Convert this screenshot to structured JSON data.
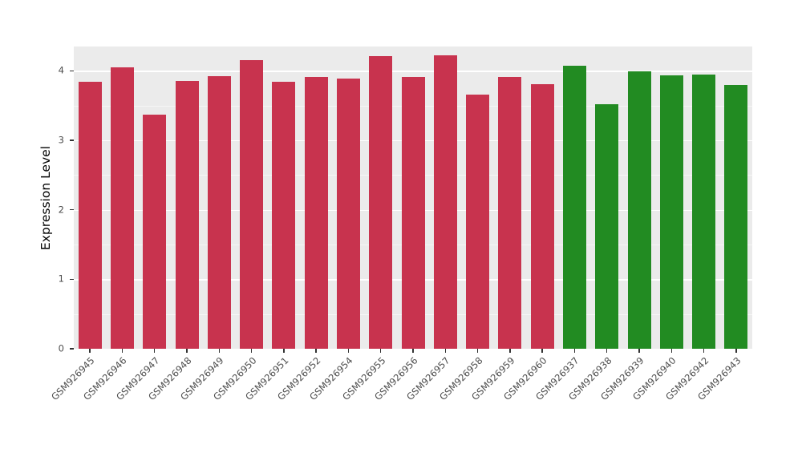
{
  "figure": {
    "background": "#FFFFFF",
    "panel_background": "#EBEBEB",
    "grid_color": "#FFFFFF",
    "tick_label_color": "#4D4D4D",
    "tick_mark_color": "#333333"
  },
  "chart_data": {
    "type": "bar",
    "title": "",
    "xlabel": "",
    "ylabel": "Expression Level",
    "ylim": [
      0,
      4.35
    ],
    "yticks": [
      0,
      1,
      2,
      3,
      4
    ],
    "y_minor_step": 0.5,
    "grid": true,
    "legend": "none",
    "x_tick_rotation": 45,
    "bar_width_fraction": 0.72,
    "categories": [
      "GSM926945",
      "GSM926946",
      "GSM926947",
      "GSM926948",
      "GSM926949",
      "GSM926950",
      "GSM926951",
      "GSM926952",
      "GSM926954",
      "GSM926955",
      "GSM926956",
      "GSM926957",
      "GSM926958",
      "GSM926959",
      "GSM926960",
      "GSM926937",
      "GSM926938",
      "GSM926939",
      "GSM926940",
      "GSM926942",
      "GSM926943"
    ],
    "values": [
      3.84,
      4.05,
      3.37,
      3.86,
      3.92,
      4.16,
      3.84,
      3.91,
      3.89,
      4.21,
      3.91,
      4.22,
      3.66,
      3.91,
      3.81,
      4.07,
      3.52,
      3.99,
      3.93,
      3.95,
      3.8
    ],
    "groups": [
      "red",
      "red",
      "red",
      "red",
      "red",
      "red",
      "red",
      "red",
      "red",
      "red",
      "red",
      "red",
      "red",
      "red",
      "red",
      "green",
      "green",
      "green",
      "green",
      "green",
      "green"
    ],
    "palette": {
      "red": "#C8334E",
      "green": "#228B22"
    }
  }
}
